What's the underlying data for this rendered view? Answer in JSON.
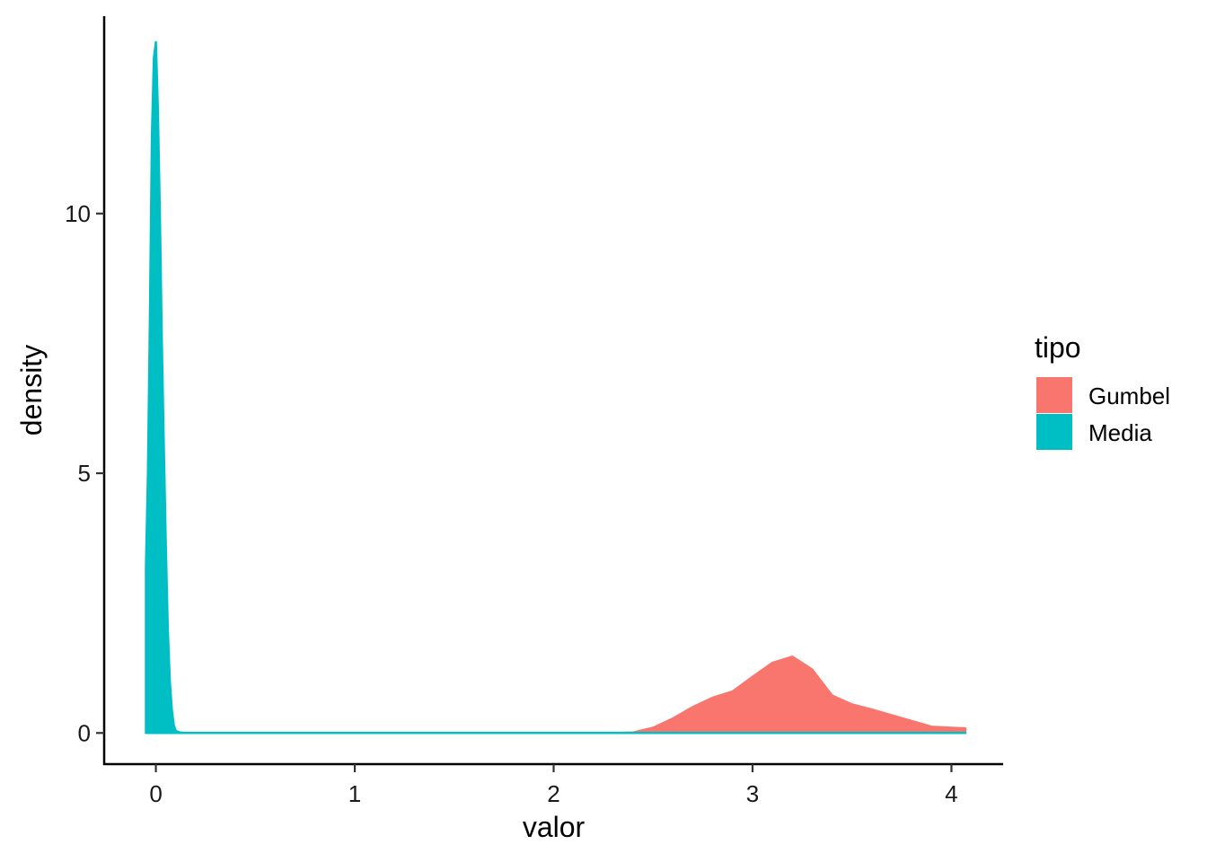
{
  "chart_data": {
    "type": "area",
    "subtype": "density",
    "title": "",
    "xlabel": "valor",
    "ylabel": "density",
    "xlim": [
      -0.26,
      4.26
    ],
    "ylim": [
      -0.6,
      13.8
    ],
    "x_ticks": [
      0,
      1,
      2,
      3,
      4
    ],
    "y_ticks": [
      0,
      5,
      10
    ],
    "grid": false,
    "legend": {
      "title": "tipo",
      "position": "right",
      "entries": [
        "Gumbel",
        "Media"
      ]
    },
    "series": [
      {
        "name": "Gumbel",
        "color": "#F8766D",
        "x": [
          -0.05,
          2.3,
          2.4,
          2.5,
          2.6,
          2.7,
          2.8,
          2.9,
          3.0,
          3.1,
          3.2,
          3.3,
          3.4,
          3.5,
          3.6,
          3.7,
          3.8,
          3.9,
          4.0,
          4.07
        ],
        "y": [
          0,
          0,
          0.01,
          0.1,
          0.28,
          0.5,
          0.68,
          0.8,
          1.08,
          1.35,
          1.47,
          1.22,
          0.72,
          0.55,
          0.45,
          0.34,
          0.23,
          0.12,
          0.1,
          0.09
        ]
      },
      {
        "name": "Media",
        "color": "#00BFC4",
        "x": [
          -0.05,
          -0.05,
          -0.04,
          -0.03,
          -0.02,
          -0.01,
          0.0,
          0.01,
          0.02,
          0.03,
          0.04,
          0.05,
          0.06,
          0.07,
          0.08,
          0.09,
          0.1,
          0.12,
          0.15,
          4.07
        ],
        "y": [
          0,
          3.2,
          5.0,
          8.0,
          11.5,
          13.0,
          13.3,
          12.0,
          10.0,
          7.5,
          5.5,
          3.6,
          2.0,
          1.0,
          0.45,
          0.15,
          0.04,
          0.01,
          0,
          0
        ]
      }
    ]
  }
}
